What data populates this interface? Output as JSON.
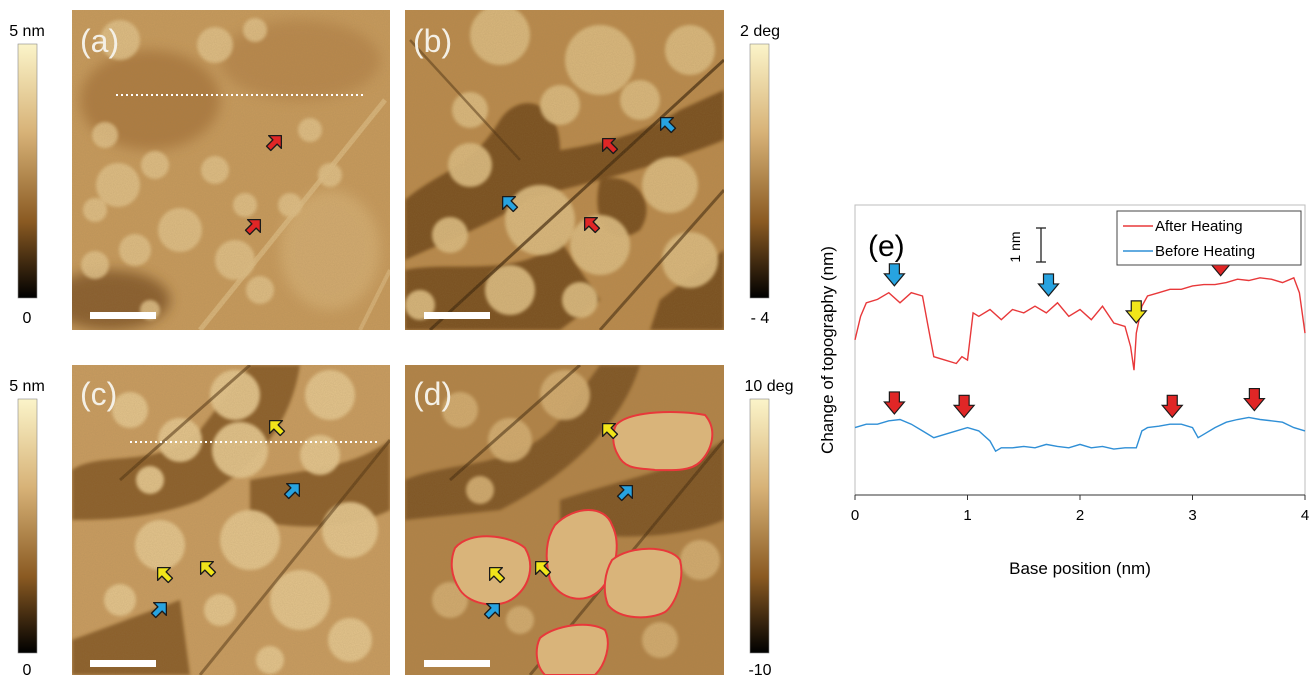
{
  "panels": {
    "a": {
      "label": "(a)"
    },
    "b": {
      "label": "(b)"
    },
    "c": {
      "label": "(c)"
    },
    "d": {
      "label": "(d)"
    }
  },
  "colorbars": {
    "top_left": {
      "max": "5 nm",
      "min": "0"
    },
    "top_right": {
      "max": "2 deg",
      "min": "- 4"
    },
    "bottom_left": {
      "max": "5 nm",
      "min": "0"
    },
    "bottom_right": {
      "max": "10 deg",
      "min": "-10"
    }
  },
  "colors": {
    "after_heating": "#e8383a",
    "before_heating": "#2f8fd6",
    "arrow_red": "#e02626",
    "arrow_blue": "#27a3e0",
    "arrow_yellow": "#f1e51a",
    "afm_light": "#f2dfa6",
    "afm_mid": "#c59757",
    "afm_dark": "#5a3814"
  },
  "chart_data": {
    "type": "line",
    "panel_label": "(e)",
    "xlabel": "Base position (nm)",
    "ylabel": "Change of topography (nm)",
    "xlim": [
      0,
      4
    ],
    "xticks": [
      "0",
      "1",
      "2",
      "3",
      "4"
    ],
    "scale_bar": "1 nm",
    "legend_position": "top-right",
    "series": [
      {
        "name": "After Heating",
        "x": [
          0.0,
          0.05,
          0.1,
          0.2,
          0.3,
          0.4,
          0.5,
          0.6,
          0.65,
          0.7,
          0.8,
          0.9,
          0.95,
          1.0,
          1.05,
          1.1,
          1.2,
          1.3,
          1.4,
          1.5,
          1.6,
          1.7,
          1.8,
          1.9,
          2.0,
          2.1,
          2.2,
          2.3,
          2.4,
          2.45,
          2.48,
          2.5,
          2.55,
          2.6,
          2.7,
          2.8,
          2.9,
          3.0,
          3.1,
          3.2,
          3.3,
          3.4,
          3.5,
          3.6,
          3.7,
          3.8,
          3.9,
          3.95,
          4.0
        ],
        "y": [
          3.8,
          4.15,
          4.35,
          4.4,
          4.5,
          4.35,
          4.5,
          4.45,
          4.0,
          3.55,
          3.5,
          3.45,
          3.55,
          3.5,
          4.2,
          4.15,
          4.25,
          4.1,
          4.25,
          4.2,
          4.3,
          4.2,
          4.35,
          4.15,
          4.25,
          4.1,
          4.3,
          4.05,
          4.0,
          3.7,
          3.35,
          3.9,
          4.3,
          4.45,
          4.5,
          4.55,
          4.55,
          4.6,
          4.62,
          4.62,
          4.65,
          4.7,
          4.68,
          4.72,
          4.7,
          4.65,
          4.72,
          4.5,
          3.9
        ]
      },
      {
        "name": "Before Heating",
        "x": [
          0.0,
          0.1,
          0.2,
          0.3,
          0.4,
          0.5,
          0.6,
          0.7,
          0.8,
          0.9,
          1.0,
          1.1,
          1.2,
          1.25,
          1.3,
          1.4,
          1.5,
          1.6,
          1.7,
          1.8,
          1.9,
          2.0,
          2.1,
          2.2,
          2.3,
          2.4,
          2.5,
          2.55,
          2.6,
          2.7,
          2.8,
          2.9,
          3.0,
          3.05,
          3.1,
          3.2,
          3.3,
          3.4,
          3.5,
          3.6,
          3.7,
          3.8,
          3.9,
          4.0
        ],
        "y": [
          2.5,
          2.55,
          2.55,
          2.6,
          2.62,
          2.55,
          2.45,
          2.35,
          2.4,
          2.45,
          2.5,
          2.45,
          2.3,
          2.15,
          2.2,
          2.2,
          2.22,
          2.2,
          2.25,
          2.22,
          2.2,
          2.25,
          2.2,
          2.22,
          2.18,
          2.2,
          2.2,
          2.45,
          2.5,
          2.52,
          2.55,
          2.55,
          2.5,
          2.35,
          2.4,
          2.5,
          2.58,
          2.62,
          2.65,
          2.62,
          2.6,
          2.58,
          2.5,
          2.45
        ]
      }
    ],
    "arrows": [
      {
        "x": 0.35,
        "y": 4.75,
        "color": "blue"
      },
      {
        "x": 1.72,
        "y": 4.6,
        "color": "blue"
      },
      {
        "x": 2.5,
        "y": 4.2,
        "color": "yellow"
      },
      {
        "x": 3.25,
        "y": 4.9,
        "color": "red"
      },
      {
        "x": 0.35,
        "y": 2.85,
        "color": "red"
      },
      {
        "x": 0.97,
        "y": 2.8,
        "color": "red"
      },
      {
        "x": 2.82,
        "y": 2.8,
        "color": "red"
      },
      {
        "x": 3.55,
        "y": 2.9,
        "color": "red"
      }
    ]
  }
}
